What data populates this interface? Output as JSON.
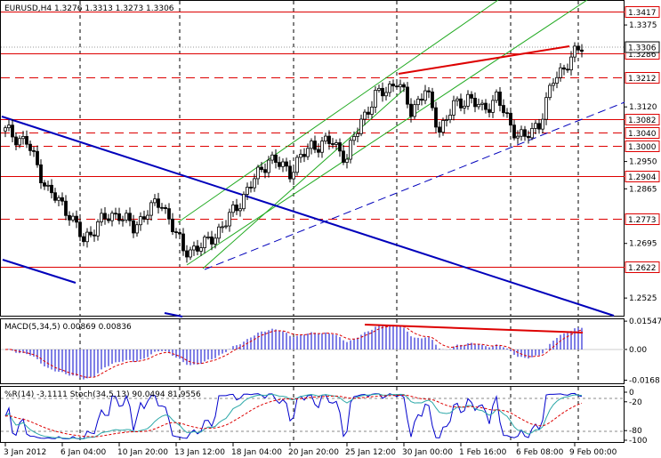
{
  "colors": {
    "background": "#ffffff",
    "candle": "#000000",
    "hline_red": "#dd0000",
    "trend_blue": "#0000bb",
    "channel_green": "#22aa22",
    "macd_hist": "#0000cc",
    "macd_signal": "#dd0000",
    "stoch_main": "#2ca8a8",
    "stoch_signal": "#dd0000",
    "wpr_line": "#0000cc",
    "price_box_bg": "#ffffff",
    "current_box_bg": "#ffffff"
  },
  "main": {
    "header": "EURUSD,H4  1.3276 1.3313 1.3273 1.3306",
    "ylim": [
      1.247,
      1.345
    ],
    "y_ticks": [
      "1.3375",
      "1.3120",
      "1.2950",
      "1.2865",
      "1.2695",
      "1.2525"
    ],
    "y_tick_values": [
      1.3375,
      1.312,
      1.295,
      1.2865,
      1.2695,
      1.2525
    ],
    "current_price": "1.3306",
    "current_value": 1.3306,
    "levels": [
      {
        "label": "1.3417",
        "value": 1.3417,
        "style": "solid"
      },
      {
        "label": "1.3286",
        "value": 1.3286,
        "style": "solid"
      },
      {
        "label": "1.3212",
        "value": 1.3212,
        "style": "dashed"
      },
      {
        "label": "1.3082",
        "value": 1.3082,
        "style": "solid"
      },
      {
        "label": "1.3040",
        "value": 1.304,
        "style": "dashed"
      },
      {
        "label": "1.3000",
        "value": 1.3,
        "style": "dashed"
      },
      {
        "label": "1.2904",
        "value": 1.2904,
        "style": "solid"
      },
      {
        "label": "1.2773",
        "value": 1.2773,
        "style": "dashed"
      },
      {
        "label": "1.2622",
        "value": 1.2622,
        "style": "solid"
      }
    ]
  },
  "macd": {
    "header": "MACD(5,34,5) 0.00869 0.00836",
    "ylim": [
      -0.0185,
      0.0165
    ],
    "y_ticks": [
      "0.01547",
      "0.00",
      "-0.0168"
    ],
    "y_tick_values": [
      0.01547,
      0.0,
      -0.0168
    ]
  },
  "stoch": {
    "header": "%R(14) -3.1111  Stoch(34,5,13) 90.0494 81.9556",
    "y_ticks": [
      "0",
      "-20",
      "-80",
      "-100"
    ],
    "y_tick_values": [
      0,
      -20,
      -80,
      -100
    ]
  },
  "x_axis": {
    "labels": [
      "3 Jan 2012",
      "6 Jan 04:00",
      "10 Jan 20:00",
      "13 Jan 12:00",
      "18 Jan 04:00",
      "20 Jan 20:00",
      "25 Jan 12:00",
      "30 Jan 00:00",
      "1 Feb 16:00",
      "6 Feb 08:00",
      "9 Feb 00:00"
    ],
    "label_bar_index": [
      0,
      16,
      32,
      48,
      64,
      80,
      96,
      112,
      128,
      144,
      160
    ],
    "vgrid_bar_index": [
      21,
      49,
      81,
      110,
      142,
      161
    ]
  }
}
